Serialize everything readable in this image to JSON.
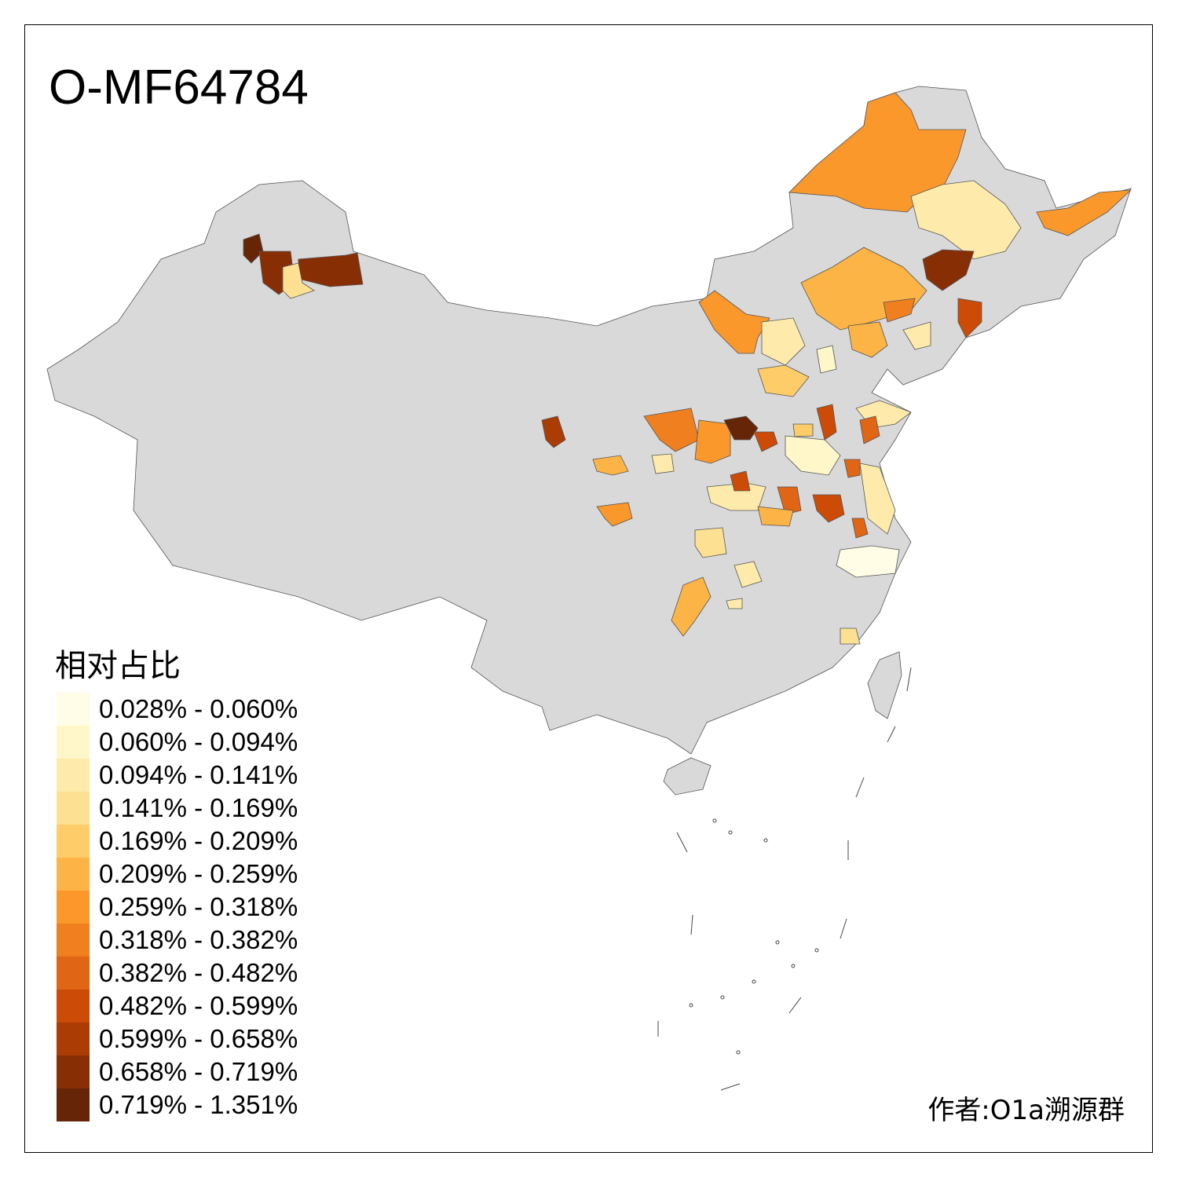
{
  "title": "O-MF64784",
  "legend": {
    "title": "相对占比",
    "items": [
      {
        "label": "0.028% - 0.060%",
        "color": "#FFFDE5"
      },
      {
        "label": "0.060% - 0.094%",
        "color": "#FFF7CA"
      },
      {
        "label": "0.094% - 0.141%",
        "color": "#FEEBAB"
      },
      {
        "label": "0.141% - 0.169%",
        "color": "#FEE092"
      },
      {
        "label": "0.169% - 0.209%",
        "color": "#FECD6A"
      },
      {
        "label": "0.209% - 0.259%",
        "color": "#FDB446"
      },
      {
        "label": "0.259% - 0.318%",
        "color": "#FA982B"
      },
      {
        "label": "0.318% - 0.382%",
        "color": "#F0801F"
      },
      {
        "label": "0.382% - 0.482%",
        "color": "#E06514"
      },
      {
        "label": "0.482% - 0.599%",
        "color": "#CC4B06"
      },
      {
        "label": "0.599% - 0.658%",
        "color": "#AA3C04"
      },
      {
        "label": "0.658% - 0.719%",
        "color": "#882E05"
      },
      {
        "label": "0.719% - 1.351%",
        "color": "#662506"
      }
    ]
  },
  "base_color": "#D9D9D9",
  "author": "作者:O1a溯源群"
}
